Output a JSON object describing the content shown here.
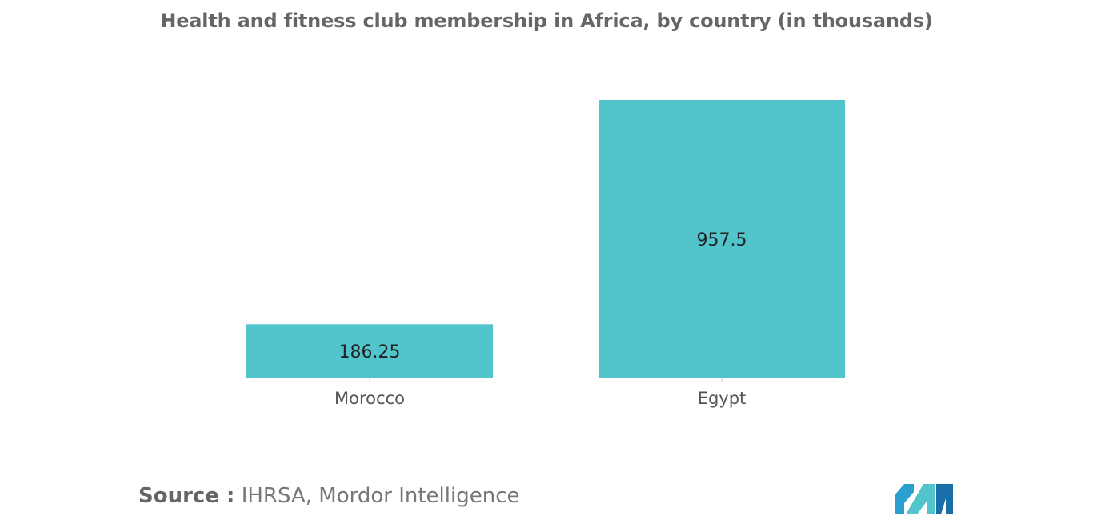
{
  "chart_data": {
    "type": "bar",
    "title": "Health and fitness club membership in Africa, by country (in thousands)",
    "categories": [
      "Morocco",
      "Egypt"
    ],
    "values": [
      186.25,
      957.5
    ],
    "value_labels": [
      "186.25",
      "957.5"
    ],
    "xlabel": "",
    "ylabel": "",
    "ylim": [
      0,
      957.5
    ],
    "grid": false,
    "legend": "none",
    "bar_color": "#52c4cb"
  },
  "source": {
    "label": "Source :",
    "text": "IHRSA, Mordor Intelligence"
  },
  "logo": {
    "icon": "mordor-intelligence-logo",
    "colors": [
      "#2b9fd0",
      "#52c4cb",
      "#1b6fa8"
    ]
  }
}
